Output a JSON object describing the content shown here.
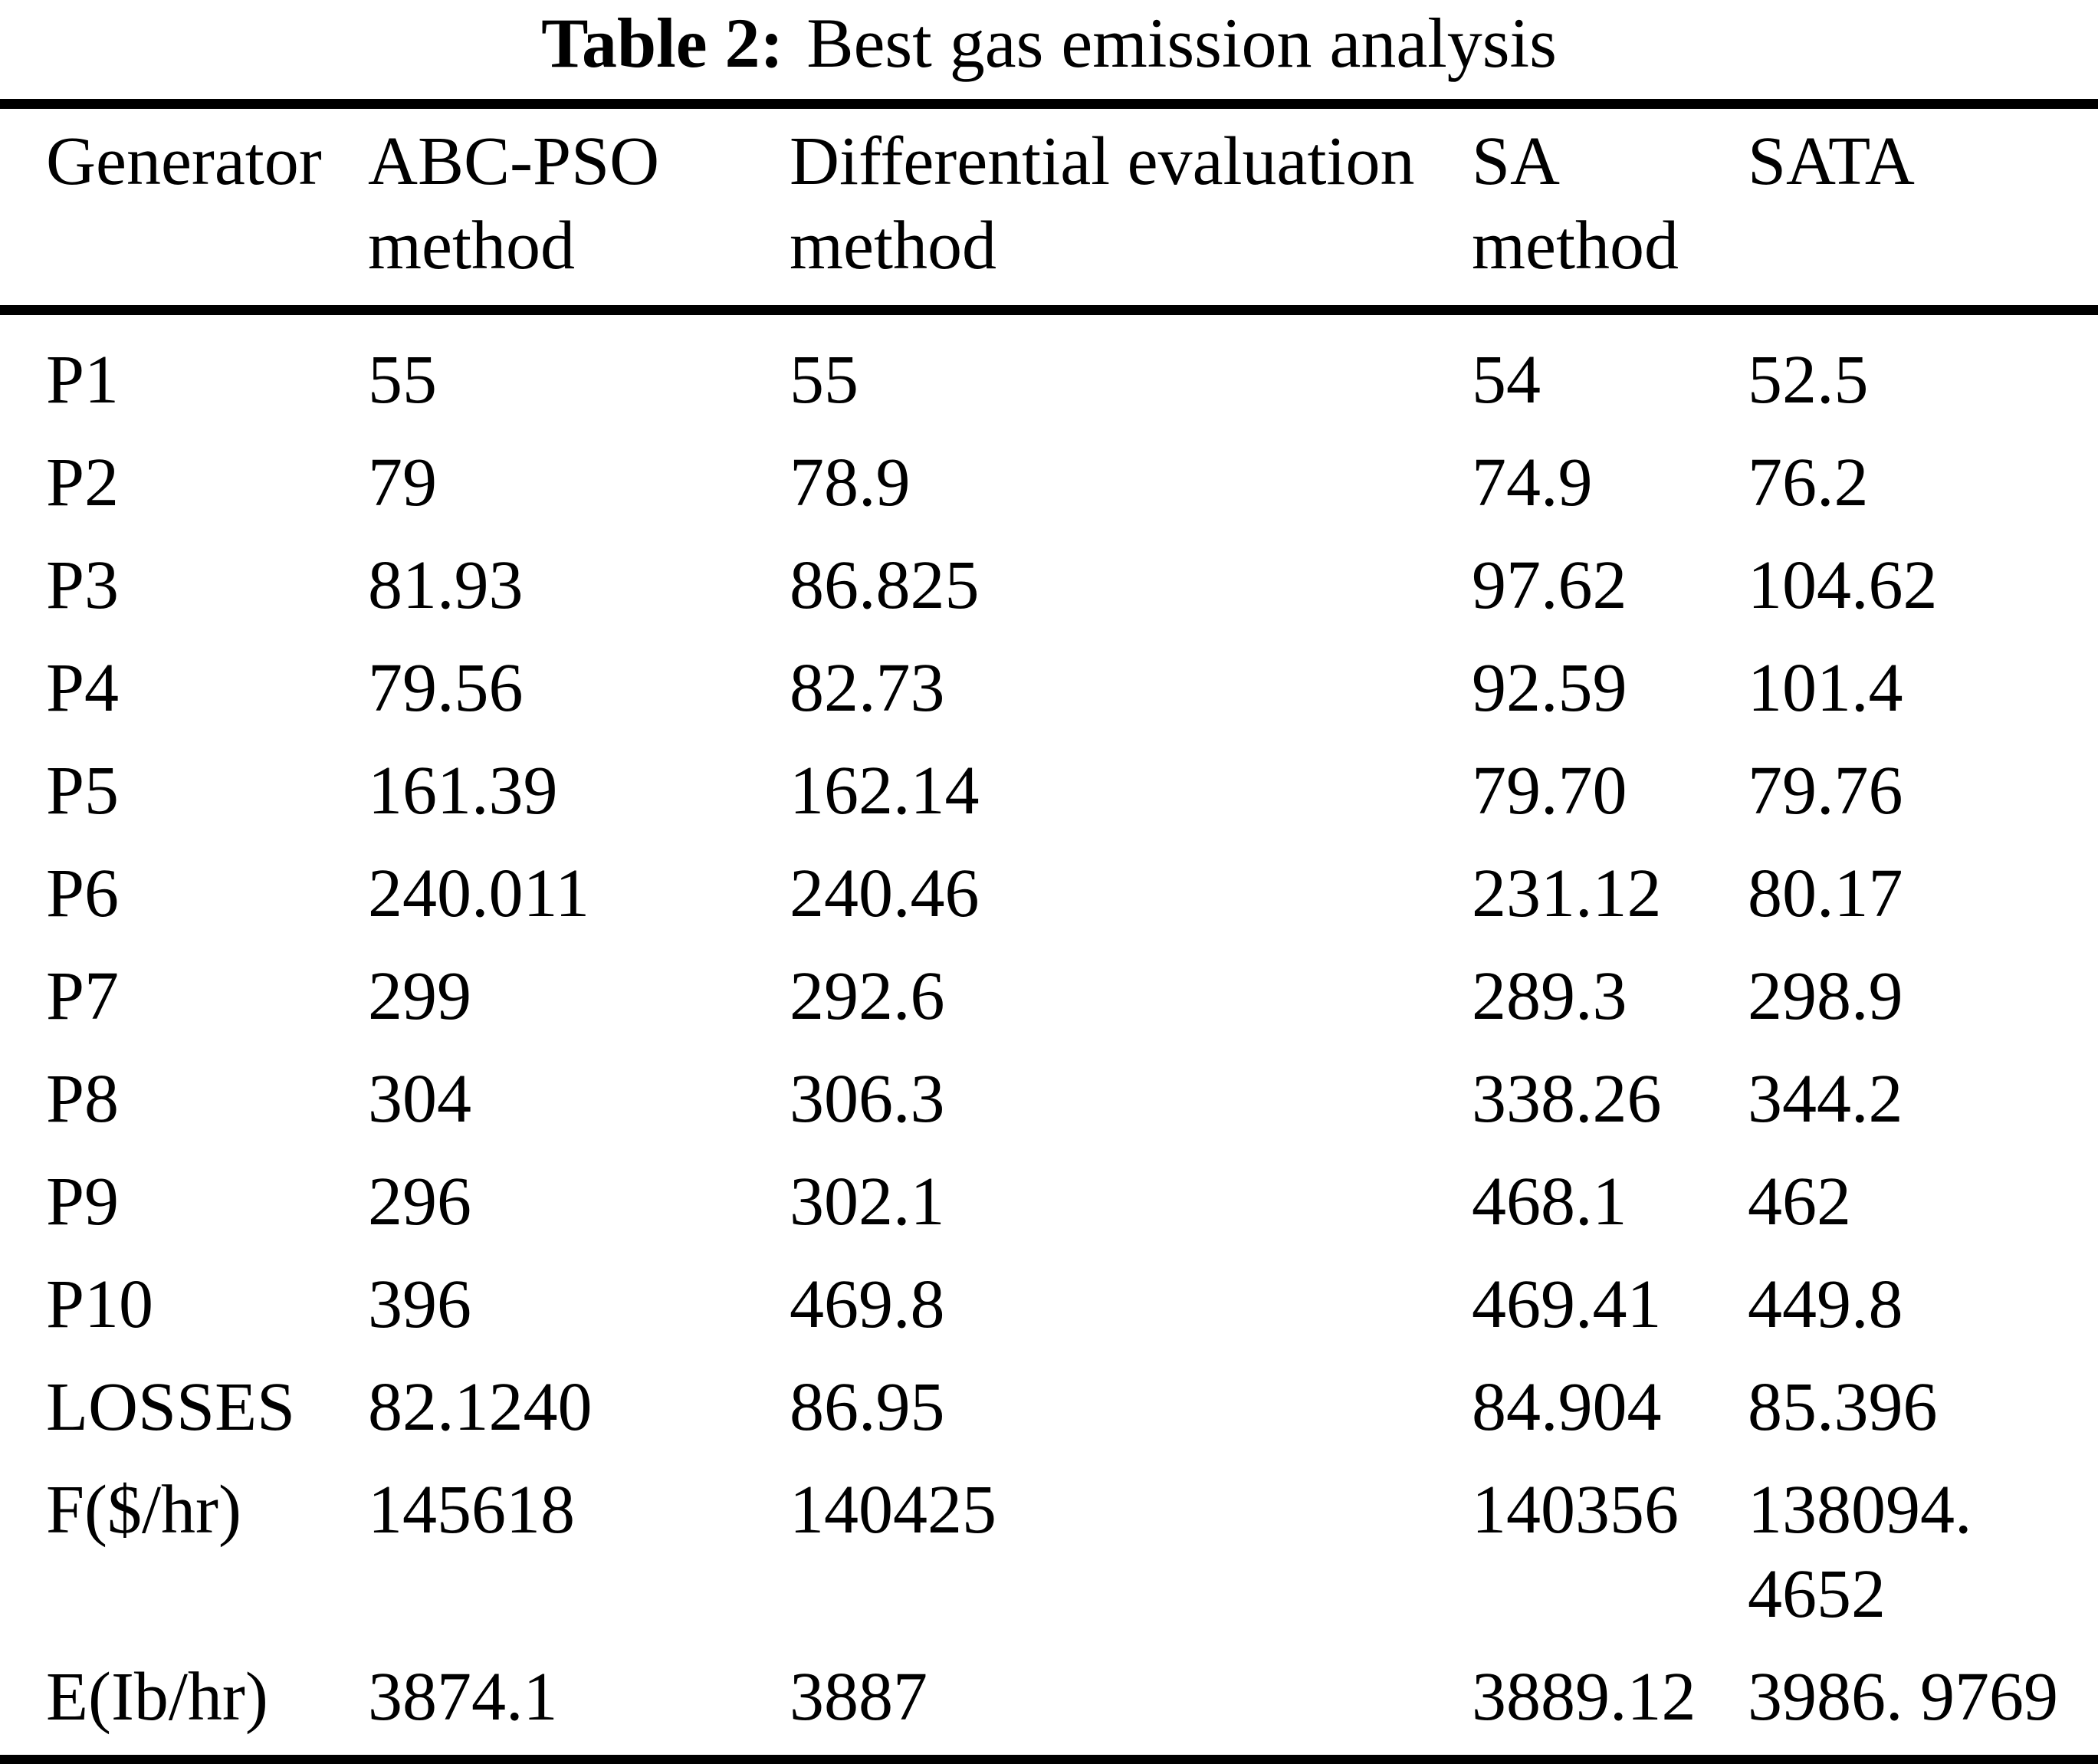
{
  "title": {
    "label": "Table 2:",
    "text": "Best gas emission analysis"
  },
  "table": {
    "headers": [
      {
        "line1": "Generator",
        "line2": ""
      },
      {
        "line1": "ABC-PSO",
        "line2": "method"
      },
      {
        "line1": "Differential evaluation",
        "line2": "method"
      },
      {
        "line1": "SA",
        "line2": "method"
      },
      {
        "line1": "SATA",
        "line2": ""
      }
    ],
    "rows": [
      [
        "P1",
        "55",
        "55",
        "54",
        "52.5"
      ],
      [
        "P2",
        "79",
        "78.9",
        "74.9",
        "76.2"
      ],
      [
        "P3",
        "81.93",
        "86.825",
        "97.62",
        "104.62"
      ],
      [
        "P4",
        "79.56",
        "82.73",
        "92.59",
        "101.4"
      ],
      [
        "P5",
        "161.39",
        "162.14",
        "79.70",
        "79.76"
      ],
      [
        "P6",
        "240.011",
        "240.46",
        "231.12",
        "80.17"
      ],
      [
        "P7",
        "299",
        "292.6",
        "289.3",
        "298.9"
      ],
      [
        "P8",
        "304",
        "306.3",
        "338.26",
        "344.2"
      ],
      [
        "P9",
        "296",
        "302.1",
        "468.1",
        "462"
      ],
      [
        "P10",
        "396",
        "469.8",
        "469.41",
        "449.8"
      ],
      [
        "LOSSES",
        "82.1240",
        "86.95",
        "84.904",
        "85.396"
      ],
      [
        "F($/hr)",
        "145618",
        "140425",
        "140356",
        "138094. 4652"
      ],
      [
        "E(Ib/hr)",
        "3874.1",
        "3887",
        "3889.12",
        "3986. 9769"
      ]
    ]
  }
}
